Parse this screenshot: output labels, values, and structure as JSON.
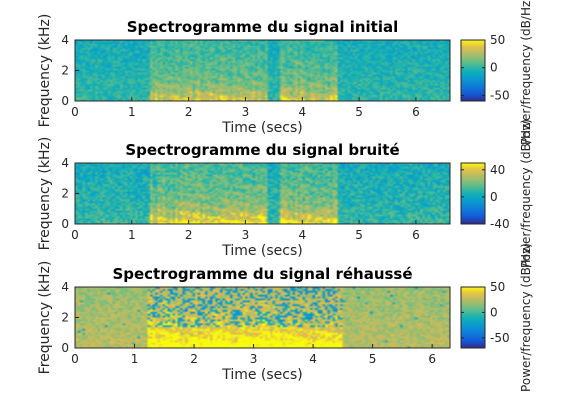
{
  "chart_data": [
    {
      "type": "heatmap",
      "title": "Spectrogramme du signal initial",
      "xlabel": "Time (secs)",
      "ylabel": "Frequency (kHz)",
      "xlim": [
        0,
        6.6
      ],
      "ylim": [
        0,
        4
      ],
      "xticks": [
        "0",
        "1",
        "2",
        "3",
        "4",
        "5",
        "6"
      ],
      "yticks": [
        "0",
        "2",
        "4"
      ],
      "colorbar": {
        "label": "Power/frequency (dB/Hz)",
        "range": [
          -60,
          50
        ],
        "ticks": [
          "50",
          "0",
          "-50"
        ]
      },
      "speech_segments": [
        [
          1.3,
          2.6
        ],
        [
          2.6,
          3.4
        ],
        [
          3.6,
          4.6
        ]
      ],
      "noise_floor_db": 0
    },
    {
      "type": "heatmap",
      "title": "Spectrogramme du signal bruité",
      "xlabel": "Time (secs)",
      "ylabel": "Frequency (kHz)",
      "xlim": [
        0,
        6.6
      ],
      "ylim": [
        0,
        4
      ],
      "xticks": [
        "0",
        "1",
        "2",
        "3",
        "4",
        "5",
        "6"
      ],
      "yticks": [
        "0",
        "2",
        "4"
      ],
      "colorbar": {
        "label": "Power/frequency (dB/Hz)",
        "range": [
          -40,
          50
        ],
        "ticks": [
          "40",
          "0",
          "-40"
        ]
      },
      "speech_segments": [
        [
          1.3,
          2.6
        ],
        [
          2.6,
          3.4
        ],
        [
          3.6,
          4.6
        ]
      ],
      "noise_floor_db": 10
    },
    {
      "type": "heatmap",
      "title": "Spectrogramme du signal réhaussé",
      "xlabel": "Time (secs)",
      "ylabel": "Frequency (kHz)",
      "xlim": [
        0,
        6.3
      ],
      "ylim": [
        0,
        4
      ],
      "xticks": [
        "0",
        "1",
        "2",
        "3",
        "4",
        "5",
        "6"
      ],
      "yticks": [
        "0",
        "2",
        "4"
      ],
      "colorbar": {
        "label": "Power/frequency (dB/Hz)",
        "range": [
          -70,
          50
        ],
        "ticks": [
          "50",
          "0",
          "-50"
        ]
      },
      "speech_segments": [
        [
          1.2,
          2.6
        ],
        [
          2.6,
          3.4
        ],
        [
          3.4,
          4.5
        ]
      ],
      "noise_floor_db": 25
    }
  ]
}
